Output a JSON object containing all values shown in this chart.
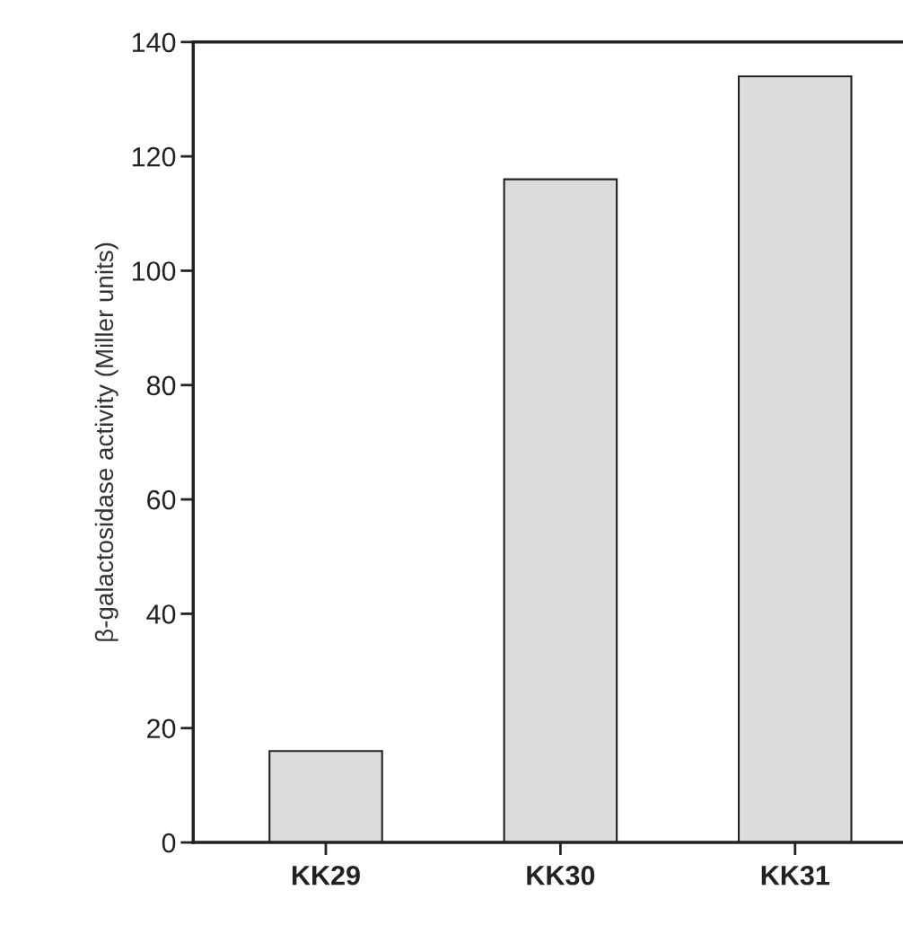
{
  "chart_data": {
    "type": "bar",
    "ylabel": "β-galactosidase activity (Miller units)",
    "categories": [
      "KK29",
      "KK30",
      "KK31"
    ],
    "values": [
      16,
      116,
      134
    ],
    "color": "#dcdcdc",
    "ylim": [
      0,
      140
    ],
    "yticks": [
      0,
      20,
      40,
      60,
      80,
      100,
      120,
      140
    ],
    "grid": false
  }
}
